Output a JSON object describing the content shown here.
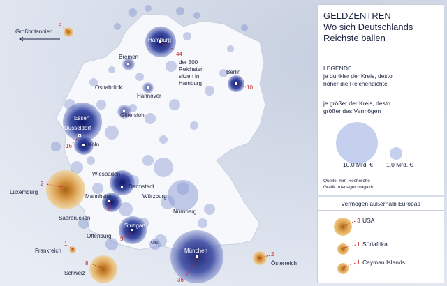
{
  "title": {
    "line1": "GELDZENTREN",
    "line2": "Wo sich Deutschlands",
    "line3": "Reichste ballen"
  },
  "legend": {
    "heading": "LEGENDE",
    "density_line1": "je dunkler der Kreis, desto",
    "density_line2": "höher die Reichendichte",
    "size_line1": "je größer der Kreis, desto",
    "size_line2": "größer das Vermögen",
    "big_circle_label": "10,0 Mrd. €",
    "small_circle_label": "1,0 Mrd. €",
    "source": "Quelle: mm-Recherche",
    "graphic": "Grafik: manager magazin"
  },
  "abroad": {
    "heading": "Vermögen außerhalb Europas",
    "items": [
      {
        "count": "3",
        "name": "USA"
      },
      {
        "count": "1",
        "name": "Südafrika"
      },
      {
        "count": "1",
        "name": "Cayman Islands"
      }
    ]
  },
  "cities": [
    {
      "name": "Hamburg"
    },
    {
      "name": "Bremen"
    },
    {
      "name": "Berlin"
    },
    {
      "name": "Osnabrück"
    },
    {
      "name": "Hannover"
    },
    {
      "name": "Gütersloh"
    },
    {
      "name": "Essen"
    },
    {
      "name": "Düsseldorf"
    },
    {
      "name": "Köln"
    },
    {
      "name": "Wiesbaden"
    },
    {
      "name": "Darmstadt"
    },
    {
      "name": "Mannheim"
    },
    {
      "name": "Würzburg"
    },
    {
      "name": "Nürnberg"
    },
    {
      "name": "Saarbrücken"
    },
    {
      "name": "Stuttgart"
    },
    {
      "name": "Offenburg"
    },
    {
      "name": "Ulm"
    },
    {
      "name": "München"
    }
  ],
  "counts": {
    "hamburg": "44",
    "hamburg_note1": "der 500",
    "hamburg_note2": "Reichsten",
    "hamburg_note3": "sitzen in",
    "hamburg_note4": "Hamburg",
    "berlin": "10",
    "duesseldorf": "16",
    "mannheim": "8",
    "stuttgart": "9",
    "muenchen": "36"
  },
  "foreign": [
    {
      "name": "Großbritannien",
      "count": "3"
    },
    {
      "name": "Luxemburg",
      "count": "2"
    },
    {
      "name": "Frankreich",
      "count": "1"
    },
    {
      "name": "Schweiz",
      "count": "8"
    },
    {
      "name": "Österreich",
      "count": "2"
    }
  ],
  "colors": {
    "bubble_blue": "#2a3a9a",
    "bubble_gold": "#e0a040",
    "count_red": "#c0282c"
  }
}
